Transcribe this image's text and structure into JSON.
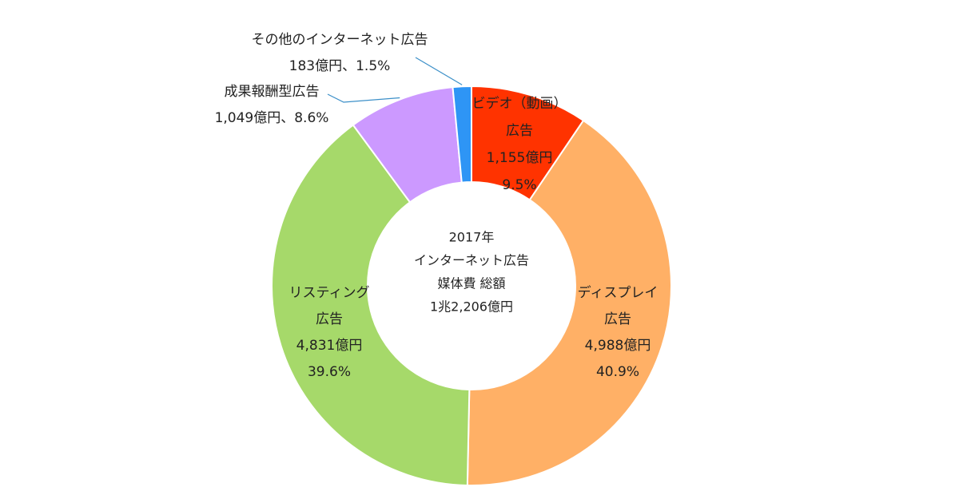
{
  "chart_data": {
    "type": "pie",
    "donut": true,
    "center_text": [
      "2017年",
      "インターネット広告",
      "媒体費 総額",
      "1兆2,206億円"
    ],
    "total": 12206,
    "unit": "億円",
    "segments": [
      {
        "name": "ビデオ（動画）広告",
        "value": 1155,
        "percent": 9.5,
        "color": "#ff3300",
        "label_lines": [
          "ビデオ（動画）",
          "広告",
          "1,155億円",
          "9.5%"
        ]
      },
      {
        "name": "ディスプレイ広告",
        "value": 4988,
        "percent": 40.9,
        "color": "#ffb066",
        "label_lines": [
          "ディスプレイ",
          "広告",
          "4,988億円",
          "40.9%"
        ]
      },
      {
        "name": "リスティング広告",
        "value": 4831,
        "percent": 39.6,
        "color": "#a6d96a",
        "label_lines": [
          "リスティング",
          "広告",
          "4,831億円",
          "39.6%"
        ]
      },
      {
        "name": "成果報酬型広告",
        "value": 1049,
        "percent": 8.6,
        "color": "#cc99ff",
        "label_lines": [
          "成果報酬型広告",
          "1,049億円、8.6%"
        ]
      },
      {
        "name": "その他のインターネット広告",
        "value": 183,
        "percent": 1.5,
        "color": "#2e95f5",
        "label_lines": [
          "その他のインターネット広告",
          "183億円、1.5%"
        ]
      }
    ]
  }
}
